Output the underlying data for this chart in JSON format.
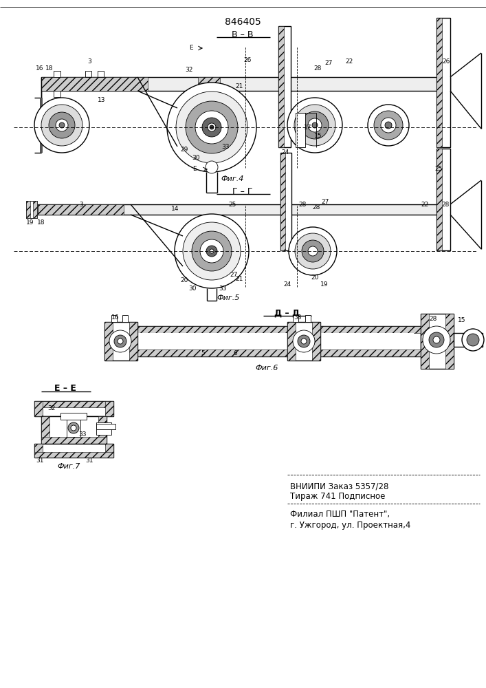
{
  "patent_number": "846405",
  "background_color": "#ffffff",
  "line_color": "#000000",
  "fig_width": 7.07,
  "fig_height": 10.0,
  "label_fontsize": 7,
  "small_fontsize": 6.5,
  "vniiipi_line1": "ВНИИПИ Заказ 5357/28",
  "vniiipi_line2": "Тираж 741 Подписное",
  "filial_line1": "Филиал ПШП \"Патент\",",
  "filial_line2": "г. Ужгород, ул. Проектная,4",
  "fig4_label": "Фиг.4",
  "fig5_label": "Фиг.5",
  "fig6_label": "Фиг.6",
  "fig7_label": "Фиг.7",
  "section_BB": "В – В",
  "section_GG": "Г – Г",
  "section_DD": "Д – Д",
  "section_EE": "Е – Е"
}
